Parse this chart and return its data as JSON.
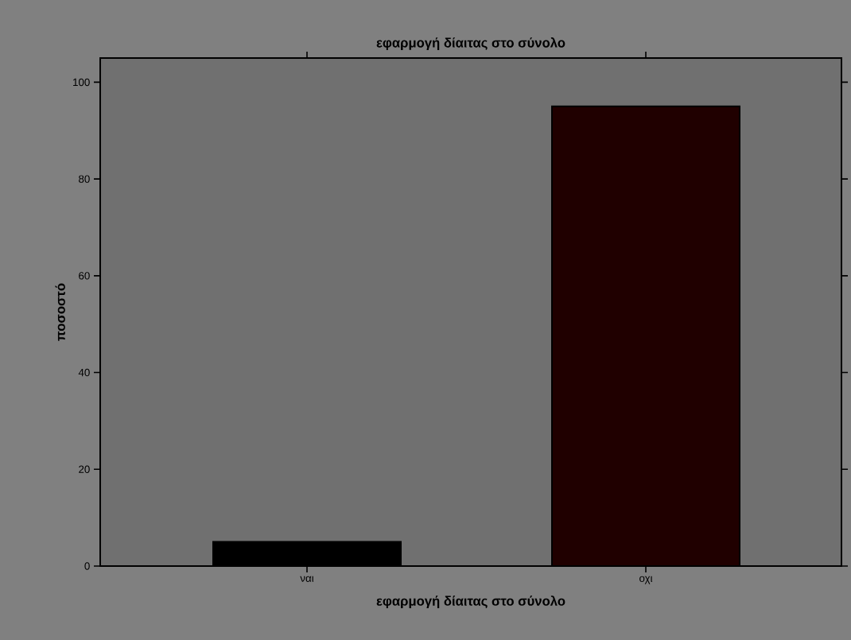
{
  "chart_data": {
    "type": "bar",
    "title": "εφαρμογή δίαιτας στο σύνολο",
    "xlabel": "εφαρμογή δίαιτας στο σύνολο",
    "ylabel": "ποσοστό",
    "categories": [
      "ναι",
      "οχι"
    ],
    "values": [
      5,
      95
    ],
    "colors": [
      "#000000",
      "#200000"
    ],
    "ylim": [
      0,
      105
    ],
    "yticks": [
      0,
      20,
      40,
      60,
      80,
      100
    ]
  }
}
